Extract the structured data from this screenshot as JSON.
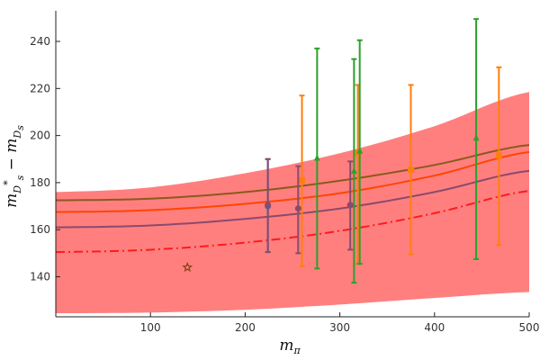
{
  "chart_data": {
    "type": "line",
    "xlabel": "m",
    "xlabel_sub": "π",
    "ylabel": "m",
    "ylabel_sub1": "D",
    "ylabel_sub1_sub": "s",
    "ylabel_sup": "*",
    "ylabel_minus": " − m",
    "ylabel_sub2": "D",
    "ylabel_sub2_sub": "s",
    "xlim": [
      0,
      500
    ],
    "ylim": [
      123,
      253
    ],
    "xticks": [
      100,
      200,
      300,
      400,
      500
    ],
    "yticks": [
      140,
      160,
      180,
      200,
      220,
      240
    ],
    "grid": false,
    "legend": "none",
    "band": {
      "color": "#ff7f7f",
      "x": [
        0,
        100,
        200,
        300,
        400,
        500
      ],
      "lower": [
        124.5,
        124.8,
        126.0,
        128.2,
        131.0,
        133.5
      ],
      "upper": [
        176.0,
        178.0,
        184.0,
        192.5,
        204.0,
        218.5
      ]
    },
    "curves": [
      {
        "style": "dashdot",
        "color": "#ff1a1a",
        "x": [
          0,
          100,
          200,
          300,
          400,
          500
        ],
        "y": [
          150.5,
          151.5,
          154.5,
          159.5,
          167.0,
          176.5
        ]
      },
      {
        "style": "solid",
        "color": "#8b4a6b",
        "x": [
          0,
          100,
          200,
          300,
          400,
          500
        ],
        "y": [
          161.0,
          161.8,
          164.6,
          169.0,
          176.0,
          185.0
        ]
      },
      {
        "style": "solid",
        "color": "#ff4500",
        "x": [
          0,
          100,
          200,
          300,
          400,
          500
        ],
        "y": [
          167.5,
          168.3,
          171.0,
          175.5,
          183.0,
          193.0
        ]
      },
      {
        "style": "solid",
        "color": "#8b5a1a",
        "x": [
          0,
          100,
          200,
          300,
          400,
          500
        ],
        "y": [
          172.5,
          173.2,
          176.0,
          180.8,
          187.5,
          196.0
        ]
      }
    ],
    "series": [
      {
        "color": "#1f77b4",
        "marker": "circle",
        "x": [
          224
        ],
        "y": [
          170.0
        ],
        "yerr_low": [
          150.5
        ],
        "yerr_high": [
          190.0
        ]
      },
      {
        "color": "#ff7f0e",
        "marker": "square",
        "x": [
          260,
          319,
          375,
          468
        ],
        "y": [
          181.0,
          192.5,
          185.5,
          191.5
        ],
        "yerr_low": [
          144.5,
          145.5,
          149.5,
          153.5
        ],
        "yerr_high": [
          217.0,
          221.5,
          221.5,
          229.0
        ]
      },
      {
        "color": "#2ca02c",
        "marker": "triangle",
        "x": [
          276,
          315,
          321,
          444
        ],
        "y": [
          190.5,
          185.0,
          193.5,
          199.0
        ],
        "yerr_low": [
          143.5,
          137.5,
          145.5,
          147.5
        ],
        "yerr_high": [
          237.0,
          232.5,
          240.5,
          249.5
        ]
      },
      {
        "color": "#8b4a6b",
        "marker": "circle",
        "x": [
          224,
          256,
          311
        ],
        "y": [
          170.5,
          169.0,
          170.5
        ],
        "yerr_low": [
          150.5,
          150.0,
          151.5
        ],
        "yerr_high": [
          190.0,
          187.0,
          189.0
        ]
      },
      {
        "color": "#8b4513",
        "marker": "star",
        "x": [
          139
        ],
        "y": [
          144.0
        ],
        "yerr_low": [],
        "yerr_high": []
      }
    ]
  }
}
